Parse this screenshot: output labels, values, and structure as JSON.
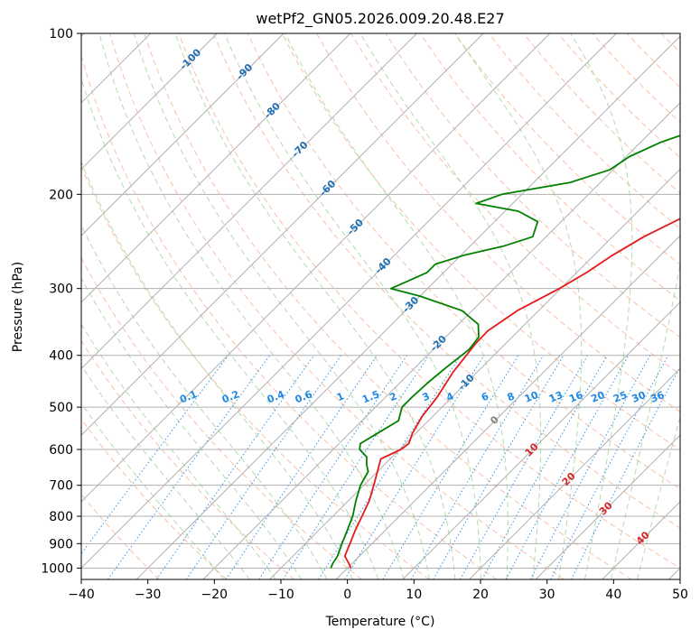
{
  "chart_data": {
    "type": "line",
    "title": "wetPf2_GN05.2026.009.20.48.E27",
    "xlabel": "Temperature (°C)",
    "ylabel": "Pressure (hPa)",
    "xlim": [
      -40,
      50
    ],
    "ylim": [
      1050,
      100
    ],
    "y_scale": "log",
    "skew_reference_pressure": 1000,
    "x_ticks": [
      "−40",
      "−30",
      "−20",
      "−10",
      "0",
      "10",
      "20",
      "30",
      "40",
      "50"
    ],
    "x_tick_values": [
      -40,
      -30,
      -20,
      -10,
      0,
      10,
      20,
      30,
      40,
      50
    ],
    "y_ticks": [
      "1000",
      "900",
      "800",
      "700",
      "600",
      "500",
      "400",
      "300",
      "200",
      "100"
    ],
    "y_tick_values": [
      1000,
      900,
      800,
      700,
      600,
      500,
      400,
      300,
      200,
      100
    ],
    "grid": true,
    "colors": {
      "temperature": "#e41a1c",
      "dewpoint": "#008000",
      "isotherm": "#b0b0b0",
      "dry_adiabat": "#f4a582",
      "moist_adiabat": "#a6d4a0",
      "mixing_ratio": "#1e88e5",
      "isotherm_label": "#1f6fb2",
      "warm_label": "#d62728",
      "zero_label": "#808080",
      "hgrid": "#b0b0b0"
    },
    "series": [
      {
        "name": "Temperature",
        "color": "#e41a1c",
        "points": [
          [
            0.5,
            1000
          ],
          [
            -0.5,
            980
          ],
          [
            -2.2,
            950
          ],
          [
            -3.3,
            900
          ],
          [
            -4.5,
            850
          ],
          [
            -5.6,
            800
          ],
          [
            -6.8,
            750
          ],
          [
            -8.5,
            700
          ],
          [
            -10.0,
            660
          ],
          [
            -10.8,
            640
          ],
          [
            -11.4,
            625
          ],
          [
            -9.8,
            600
          ],
          [
            -9.5,
            585
          ],
          [
            -10.5,
            560
          ],
          [
            -11.6,
            520
          ],
          [
            -12.2,
            480
          ],
          [
            -13.6,
            430
          ],
          [
            -14.5,
            380
          ],
          [
            -14.6,
            360
          ],
          [
            -13.2,
            330
          ],
          [
            -10.2,
            300
          ],
          [
            -8.5,
            280
          ],
          [
            -7.2,
            260
          ],
          [
            -5.3,
            240
          ],
          [
            -2.2,
            220
          ],
          [
            1.3,
            200
          ],
          [
            4.5,
            180
          ],
          [
            7.5,
            160
          ],
          [
            10.5,
            145
          ],
          [
            12.7,
            135
          ],
          [
            16.8,
            125
          ],
          [
            19.5,
            118
          ],
          [
            21.5,
            112
          ],
          [
            21.6,
            106
          ],
          [
            22.6,
            100
          ]
        ]
      },
      {
        "name": "Dewpoint",
        "color": "#008000",
        "points": [
          [
            -2.5,
            1000
          ],
          [
            -2.9,
            980
          ],
          [
            -3.3,
            950
          ],
          [
            -4.5,
            900
          ],
          [
            -5.7,
            850
          ],
          [
            -7.0,
            800
          ],
          [
            -8.8,
            750
          ],
          [
            -10.5,
            700
          ],
          [
            -11.4,
            660
          ],
          [
            -12.7,
            640
          ],
          [
            -13.8,
            620
          ],
          [
            -16.0,
            600
          ],
          [
            -16.8,
            585
          ],
          [
            -15.8,
            560
          ],
          [
            -14.5,
            530
          ],
          [
            -16.0,
            500
          ],
          [
            -16.0,
            480
          ],
          [
            -15.8,
            450
          ],
          [
            -15.3,
            420
          ],
          [
            -14.6,
            390
          ],
          [
            -15.0,
            370
          ],
          [
            -17.0,
            350
          ],
          [
            -21.5,
            330
          ],
          [
            -30.0,
            310
          ],
          [
            -35.5,
            300
          ],
          [
            -34.0,
            290
          ],
          [
            -32.5,
            280
          ],
          [
            -32.5,
            270
          ],
          [
            -29.5,
            260
          ],
          [
            -25.0,
            250
          ],
          [
            -22.0,
            240
          ],
          [
            -23.5,
            225
          ],
          [
            -28.0,
            215
          ],
          [
            -35.5,
            208
          ],
          [
            -33.0,
            200
          ],
          [
            -24.5,
            190
          ],
          [
            -20.5,
            180
          ],
          [
            -19.5,
            170
          ],
          [
            -17.0,
            160
          ],
          [
            -12.8,
            150
          ],
          [
            -11.5,
            140
          ],
          [
            -10.8,
            130
          ],
          [
            -8.5,
            120
          ],
          [
            -4.5,
            110
          ],
          [
            -1.0,
            104
          ],
          [
            0.3,
            100
          ]
        ]
      }
    ],
    "isotherm_labels": [
      {
        "t": -100,
        "text": "-100"
      },
      {
        "t": -90,
        "text": "-90"
      },
      {
        "t": -80,
        "text": "-80"
      },
      {
        "t": -70,
        "text": "-70"
      },
      {
        "t": -60,
        "text": "-60"
      },
      {
        "t": -50,
        "text": "-50"
      },
      {
        "t": -40,
        "text": "-40"
      },
      {
        "t": -30,
        "text": "-30"
      },
      {
        "t": -20,
        "text": "-20"
      },
      {
        "t": -10,
        "text": "-10"
      },
      {
        "t": 0,
        "text": "0"
      },
      {
        "t": 10,
        "text": "10"
      },
      {
        "t": 20,
        "text": "20"
      },
      {
        "t": 30,
        "text": "30"
      },
      {
        "t": 40,
        "text": "40"
      }
    ],
    "mixing_ratio_labels": [
      "0.1",
      "0.2",
      "0.4",
      "0.6",
      "1",
      "1.5",
      "2",
      "3",
      "4",
      "6",
      "8",
      "10",
      "13",
      "16",
      "20",
      "25",
      "30",
      "36"
    ],
    "mixing_ratio_values": [
      0.1,
      0.2,
      0.4,
      0.6,
      1,
      1.5,
      2,
      3,
      4,
      6,
      8,
      10,
      13,
      16,
      20,
      25,
      30,
      36
    ],
    "mixing_ratio_label_pressure": 500
  }
}
